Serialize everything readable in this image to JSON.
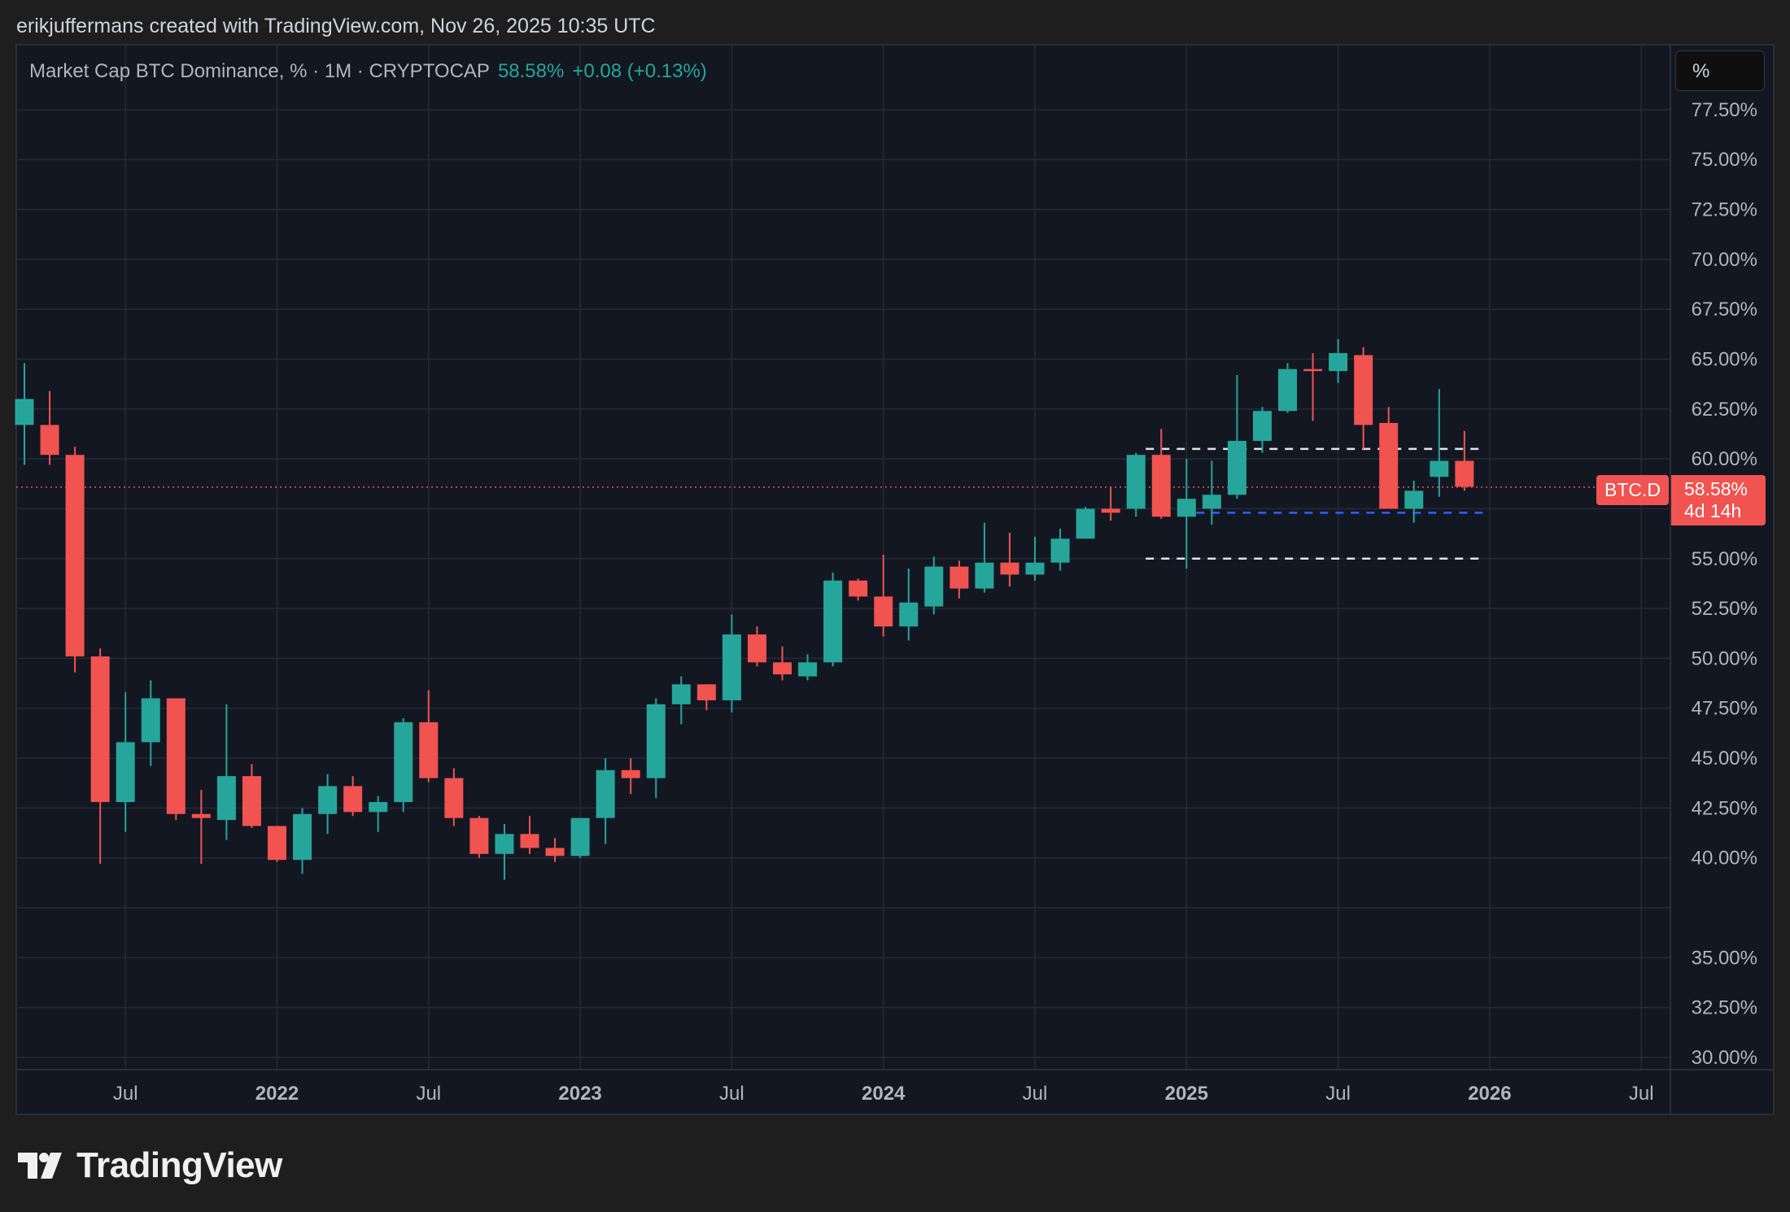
{
  "caption": "erikjuffermans created with TradingView.com, Nov 26, 2025 10:35 UTC",
  "legend": {
    "title": "Market Cap BTC Dominance, % · 1M · CRYPTOCAP",
    "last": "58.58%",
    "change": "+0.08 (+0.13%)"
  },
  "unit_button": "%",
  "badges": {
    "symbol": "BTC.D",
    "price": "58.58%",
    "countdown": "4d 14h"
  },
  "brand": "TradingView",
  "colors": {
    "up": "#26a69a",
    "down": "#f05350",
    "background": "#131722",
    "grid": "#252a36",
    "support_line": "#2962ff"
  },
  "chart_data": {
    "type": "candlestick",
    "title": "Market Cap BTC Dominance, % · 1M · CRYPTOCAP",
    "timeframe": "1M",
    "y_axis": {
      "min": 30,
      "max": 80,
      "side": "right",
      "ticks": [
        30,
        32.5,
        35,
        37.5,
        40,
        42.5,
        45,
        47.5,
        50,
        52.5,
        55,
        57.5,
        60,
        62.5,
        65,
        67.5,
        70,
        72.5,
        75,
        77.5
      ],
      "tick_labels": [
        "30.00%",
        "32.50%",
        "35.00%",
        "",
        "40.00%",
        "42.50%",
        "45.00%",
        "47.50%",
        "50.00%",
        "52.50%",
        "55.00%",
        "",
        "60.00%",
        "62.50%",
        "65.00%",
        "67.50%",
        "70.00%",
        "72.50%",
        "75.00%",
        "77.50%"
      ]
    },
    "x_axis": {
      "first_candle": "2021-03",
      "labels": [
        {
          "month": "2021-07",
          "text": "Jul",
          "bold": false
        },
        {
          "month": "2022-01",
          "text": "2022",
          "bold": true
        },
        {
          "month": "2022-07",
          "text": "Jul",
          "bold": false
        },
        {
          "month": "2023-01",
          "text": "2023",
          "bold": true
        },
        {
          "month": "2023-07",
          "text": "Jul",
          "bold": false
        },
        {
          "month": "2024-01",
          "text": "2024",
          "bold": true
        },
        {
          "month": "2024-07",
          "text": "Jul",
          "bold": false
        },
        {
          "month": "2025-01",
          "text": "2025",
          "bold": true
        },
        {
          "month": "2025-07",
          "text": "Jul",
          "bold": false
        },
        {
          "month": "2026-01",
          "text": "2026",
          "bold": true
        },
        {
          "month": "2026-07",
          "text": "Jul",
          "bold": false
        }
      ]
    },
    "candles": [
      {
        "month": "2021-03",
        "open": 61.7,
        "high": 64.8,
        "low": 59.7,
        "close": 63.0
      },
      {
        "month": "2021-04",
        "open": 61.7,
        "high": 63.4,
        "low": 59.7,
        "close": 60.2
      },
      {
        "month": "2021-05",
        "open": 60.2,
        "high": 60.6,
        "low": 49.3,
        "close": 50.1
      },
      {
        "month": "2021-06",
        "open": 50.1,
        "high": 50.5,
        "low": 39.7,
        "close": 42.8
      },
      {
        "month": "2021-07",
        "open": 42.8,
        "high": 48.3,
        "low": 41.3,
        "close": 45.8
      },
      {
        "month": "2021-08",
        "open": 45.8,
        "high": 48.9,
        "low": 44.6,
        "close": 48.0
      },
      {
        "month": "2021-09",
        "open": 48.0,
        "high": 48.0,
        "low": 41.9,
        "close": 42.2
      },
      {
        "month": "2021-10",
        "open": 42.2,
        "high": 43.4,
        "low": 39.7,
        "close": 42.0
      },
      {
        "month": "2021-11",
        "open": 41.9,
        "high": 47.7,
        "low": 40.9,
        "close": 44.1
      },
      {
        "month": "2021-12",
        "open": 44.1,
        "high": 44.7,
        "low": 41.5,
        "close": 41.6
      },
      {
        "month": "2022-01",
        "open": 41.6,
        "high": 41.6,
        "low": 39.8,
        "close": 39.9
      },
      {
        "month": "2022-02",
        "open": 39.9,
        "high": 42.5,
        "low": 39.2,
        "close": 42.2
      },
      {
        "month": "2022-03",
        "open": 42.2,
        "high": 44.2,
        "low": 41.2,
        "close": 43.6
      },
      {
        "month": "2022-04",
        "open": 43.6,
        "high": 44.1,
        "low": 42.1,
        "close": 42.3
      },
      {
        "month": "2022-05",
        "open": 42.3,
        "high": 43.1,
        "low": 41.3,
        "close": 42.8
      },
      {
        "month": "2022-06",
        "open": 42.8,
        "high": 47.0,
        "low": 42.3,
        "close": 46.8
      },
      {
        "month": "2022-07",
        "open": 46.8,
        "high": 48.4,
        "low": 43.8,
        "close": 44.0
      },
      {
        "month": "2022-08",
        "open": 44.0,
        "high": 44.5,
        "low": 41.6,
        "close": 42.0
      },
      {
        "month": "2022-09",
        "open": 42.0,
        "high": 42.1,
        "low": 40.0,
        "close": 40.2
      },
      {
        "month": "2022-10",
        "open": 40.2,
        "high": 41.7,
        "low": 38.9,
        "close": 41.2
      },
      {
        "month": "2022-11",
        "open": 41.2,
        "high": 42.1,
        "low": 40.2,
        "close": 40.5
      },
      {
        "month": "2022-12",
        "open": 40.5,
        "high": 41.0,
        "low": 39.8,
        "close": 40.1
      },
      {
        "month": "2023-01",
        "open": 40.1,
        "high": 42.0,
        "low": 40.0,
        "close": 42.0
      },
      {
        "month": "2023-02",
        "open": 42.0,
        "high": 45.0,
        "low": 40.7,
        "close": 44.4
      },
      {
        "month": "2023-03",
        "open": 44.4,
        "high": 45.0,
        "low": 43.2,
        "close": 44.0
      },
      {
        "month": "2023-04",
        "open": 44.0,
        "high": 48.0,
        "low": 43.0,
        "close": 47.7
      },
      {
        "month": "2023-05",
        "open": 47.7,
        "high": 49.1,
        "low": 46.7,
        "close": 48.7
      },
      {
        "month": "2023-06",
        "open": 48.7,
        "high": 48.7,
        "low": 47.4,
        "close": 47.9
      },
      {
        "month": "2023-07",
        "open": 47.9,
        "high": 52.2,
        "low": 47.3,
        "close": 51.2
      },
      {
        "month": "2023-08",
        "open": 51.2,
        "high": 51.6,
        "low": 49.6,
        "close": 49.8
      },
      {
        "month": "2023-09",
        "open": 49.8,
        "high": 50.6,
        "low": 48.9,
        "close": 49.2
      },
      {
        "month": "2023-10",
        "open": 49.1,
        "high": 50.2,
        "low": 48.9,
        "close": 49.8
      },
      {
        "month": "2023-11",
        "open": 49.8,
        "high": 54.3,
        "low": 49.6,
        "close": 53.9
      },
      {
        "month": "2023-12",
        "open": 53.9,
        "high": 54.0,
        "low": 52.9,
        "close": 53.1
      },
      {
        "month": "2024-01",
        "open": 53.1,
        "high": 55.2,
        "low": 51.1,
        "close": 51.6
      },
      {
        "month": "2024-02",
        "open": 51.6,
        "high": 54.5,
        "low": 50.9,
        "close": 52.8
      },
      {
        "month": "2024-03",
        "open": 52.6,
        "high": 55.1,
        "low": 52.2,
        "close": 54.6
      },
      {
        "month": "2024-04",
        "open": 54.6,
        "high": 54.9,
        "low": 53.0,
        "close": 53.5
      },
      {
        "month": "2024-05",
        "open": 53.5,
        "high": 56.8,
        "low": 53.3,
        "close": 54.8
      },
      {
        "month": "2024-06",
        "open": 54.8,
        "high": 56.3,
        "low": 53.6,
        "close": 54.2
      },
      {
        "month": "2024-07",
        "open": 54.2,
        "high": 56.1,
        "low": 53.9,
        "close": 54.8
      },
      {
        "month": "2024-08",
        "open": 54.8,
        "high": 56.5,
        "low": 54.4,
        "close": 56.0
      },
      {
        "month": "2024-09",
        "open": 56.0,
        "high": 57.6,
        "low": 56.0,
        "close": 57.5
      },
      {
        "month": "2024-10",
        "open": 57.5,
        "high": 58.6,
        "low": 56.9,
        "close": 57.3
      },
      {
        "month": "2024-11",
        "open": 57.5,
        "high": 60.3,
        "low": 57.1,
        "close": 60.2
      },
      {
        "month": "2024-12",
        "open": 60.2,
        "high": 61.5,
        "low": 57.0,
        "close": 57.1
      },
      {
        "month": "2025-01",
        "open": 57.1,
        "high": 60.0,
        "low": 54.5,
        "close": 58.0
      },
      {
        "month": "2025-02",
        "open": 57.5,
        "high": 59.9,
        "low": 56.7,
        "close": 58.2
      },
      {
        "month": "2025-03",
        "open": 58.2,
        "high": 64.2,
        "low": 58.0,
        "close": 60.9
      },
      {
        "month": "2025-04",
        "open": 60.9,
        "high": 62.6,
        "low": 60.3,
        "close": 62.4
      },
      {
        "month": "2025-05",
        "open": 62.4,
        "high": 64.8,
        "low": 62.3,
        "close": 64.5
      },
      {
        "month": "2025-06",
        "open": 64.5,
        "high": 65.3,
        "low": 61.9,
        "close": 64.4
      },
      {
        "month": "2025-07",
        "open": 64.4,
        "high": 66.0,
        "low": 63.8,
        "close": 65.3
      },
      {
        "month": "2025-08",
        "open": 65.2,
        "high": 65.6,
        "low": 60.5,
        "close": 61.7
      },
      {
        "month": "2025-09",
        "open": 61.8,
        "high": 62.6,
        "low": 57.6,
        "close": 57.5
      },
      {
        "month": "2025-10",
        "open": 57.5,
        "high": 58.9,
        "low": 56.8,
        "close": 58.4
      },
      {
        "month": "2025-11",
        "open": 59.1,
        "high": 63.5,
        "low": 58.1,
        "close": 59.9
      },
      {
        "month": "2025-12",
        "open": 59.9,
        "high": 61.4,
        "low": 58.4,
        "close": 58.6
      }
    ],
    "last_price": 58.58,
    "horizontal_levels": [
      {
        "value": 60.5,
        "style": "dashed",
        "color": "#e0e3eb",
        "from": "2024-11",
        "to": "2025-12"
      },
      {
        "value": 57.3,
        "style": "dashed",
        "color": "#2962ff",
        "from": "2025-01",
        "to": "2025-12"
      },
      {
        "value": 55.0,
        "style": "dashed",
        "color": "#e0e3eb",
        "from": "2024-11",
        "to": "2025-12"
      }
    ],
    "grid": true
  }
}
